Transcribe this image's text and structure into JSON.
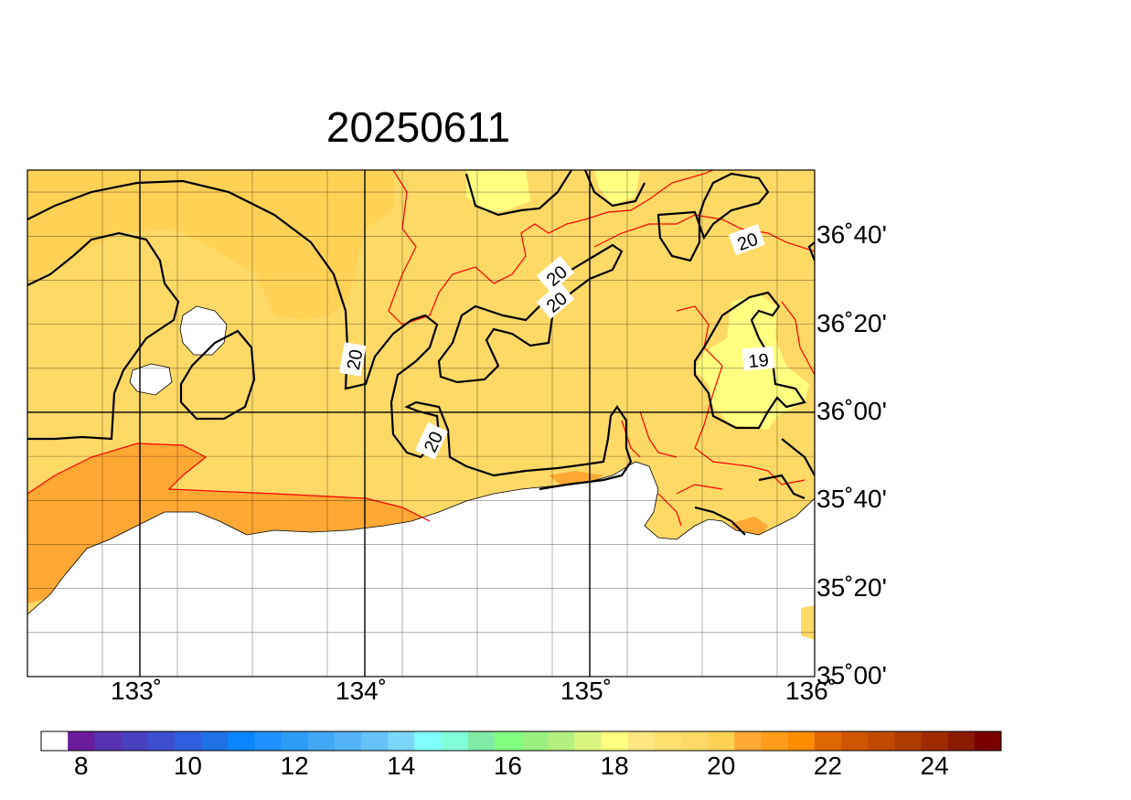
{
  "title": "20250611",
  "map": {
    "lon_range": [
      132.5,
      136.0
    ],
    "lat_range": [
      35.0,
      36.9167
    ],
    "lon_ticks": [
      {
        "value": 133,
        "label": "133˚"
      },
      {
        "value": 134,
        "label": "134˚"
      },
      {
        "value": 135,
        "label": "135˚"
      },
      {
        "value": 136,
        "label": "136˚"
      }
    ],
    "lat_ticks": [
      {
        "value": 36.6667,
        "label": "36˚40'"
      },
      {
        "value": 36.3333,
        "label": "36˚20'"
      },
      {
        "value": 36.0,
        "label": "36˚00'"
      },
      {
        "value": 35.6667,
        "label": "35˚40'"
      },
      {
        "value": 35.3333,
        "label": "35˚20'"
      },
      {
        "value": 35.0,
        "label": "35˚00'"
      }
    ],
    "contour_labels": [
      {
        "text": "20",
        "lon": 133.95,
        "lat": 36.2
      },
      {
        "text": "20",
        "lon": 134.85,
        "lat": 36.52
      },
      {
        "text": "20",
        "lon": 134.85,
        "lat": 36.42
      },
      {
        "text": "20",
        "lon": 134.3,
        "lat": 35.89
      },
      {
        "text": "20",
        "lon": 135.7,
        "lat": 36.65
      },
      {
        "text": "19",
        "lon": 135.75,
        "lat": 36.2
      }
    ],
    "land_color": "#ffffff",
    "contour_color": "#000000",
    "red_contour_color": "#ff0000"
  },
  "colorbar": {
    "colors": [
      "#ffffff",
      "#6a1b9a",
      "#5632b0",
      "#4a3fbf",
      "#3d4fd0",
      "#2f5fe0",
      "#2070e6",
      "#0a84ff",
      "#1e90ff",
      "#2d9cf5",
      "#42a8f5",
      "#55b4f7",
      "#66c3fa",
      "#7bd6fc",
      "#80ffff",
      "#80ffd9",
      "#80eba6",
      "#80ff80",
      "#99f080",
      "#b3f080",
      "#d9f580",
      "#ffff80",
      "#ffe680",
      "#ffdf6e",
      "#ffd966",
      "#ffd255",
      "#ffa833",
      "#ff9c1a",
      "#ff8c00",
      "#e06600",
      "#d15500",
      "#c24a00",
      "#b03c00",
      "#a02a00",
      "#8c1a00",
      "#7a0000"
    ],
    "ticks": [
      {
        "label": "8",
        "pos": 1.5
      },
      {
        "label": "10",
        "pos": 5.5
      },
      {
        "label": "12",
        "pos": 9.5
      },
      {
        "label": "14",
        "pos": 13.5
      },
      {
        "label": "16",
        "pos": 17.5
      },
      {
        "label": "18",
        "pos": 21.5
      },
      {
        "label": "20",
        "pos": 25.5
      },
      {
        "label": "22",
        "pos": 29.5
      },
      {
        "label": "24",
        "pos": 33.5
      }
    ]
  }
}
